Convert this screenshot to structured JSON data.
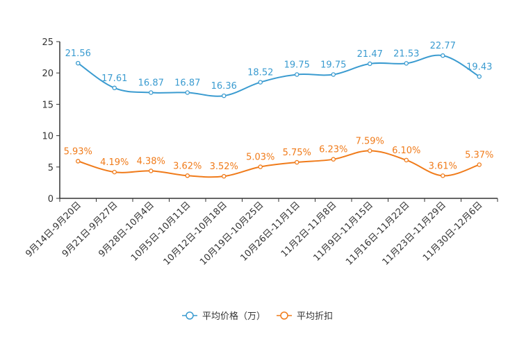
{
  "chart_data": {
    "type": "line",
    "title": "",
    "xlabel": "",
    "ylabel": "",
    "ylim": [
      0,
      25
    ],
    "yticks": [
      0,
      5,
      10,
      15,
      20,
      25
    ],
    "grid": false,
    "legend_position": "bottom-center",
    "categories": [
      "9月14日-9月20日",
      "9月21日-9月27日",
      "9月28日-10月4日",
      "10月5日-10月11日",
      "10月12日-10月18日",
      "10月19日-10月25日",
      "10月26日-11月1日",
      "11月2日-11月8日",
      "11月9日-11月15日",
      "11月16日-11月22日",
      "11月23日-11月29日",
      "11月30日-12月6日"
    ],
    "series": [
      {
        "name": "平均价格（万）",
        "color": "#3a9bd0",
        "values": [
          21.56,
          17.61,
          16.87,
          16.87,
          16.36,
          18.52,
          19.75,
          19.75,
          21.47,
          21.53,
          22.77,
          19.43
        ],
        "labels": [
          "21.56",
          "17.61",
          "16.87",
          "16.87",
          "16.36",
          "18.52",
          "19.75",
          "19.75",
          "21.47",
          "21.53",
          "22.77",
          "19.43"
        ]
      },
      {
        "name": "平均折扣",
        "color": "#f07b1a",
        "values": [
          5.93,
          4.19,
          4.38,
          3.62,
          3.52,
          5.03,
          5.75,
          6.23,
          7.59,
          6.1,
          3.61,
          5.37
        ],
        "labels": [
          "5.93%",
          "4.19%",
          "4.38%",
          "3.62%",
          "3.52%",
          "5.03%",
          "5.75%",
          "6.23%",
          "7.59%",
          "6.10%",
          "3.61%",
          "5.37%"
        ]
      }
    ]
  }
}
